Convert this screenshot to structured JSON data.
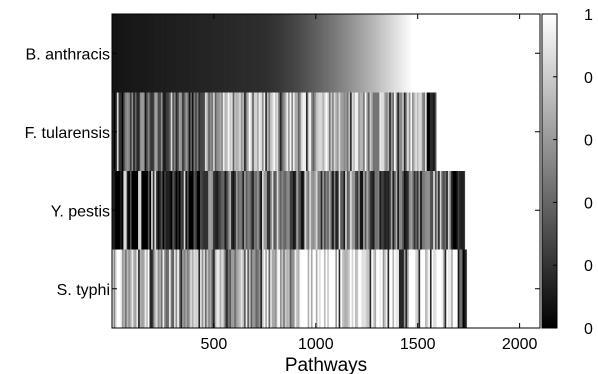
{
  "chart_data": {
    "type": "heatmap",
    "title": "",
    "xlabel": "Pathways",
    "ylabel": "",
    "xlim": [
      0,
      2100
    ],
    "xticks": [
      500,
      1000,
      1500,
      2000
    ],
    "rows": [
      {
        "label": "B. anthracis",
        "length": 1470,
        "pattern": "gradient"
      },
      {
        "label": "F. tularensis",
        "length": 1590,
        "pattern": "band",
        "bands": [
          [
            0,
            60,
            0.08
          ],
          [
            60,
            460,
            0.35
          ],
          [
            460,
            1540,
            0.72
          ],
          [
            1540,
            1590,
            0.18
          ]
        ]
      },
      {
        "label": "Y. pestis",
        "length": 1730,
        "pattern": "band",
        "bands": [
          [
            0,
            460,
            0.05
          ],
          [
            460,
            1520,
            0.4
          ],
          [
            1520,
            1670,
            0.62
          ],
          [
            1670,
            1730,
            0.15
          ]
        ]
      },
      {
        "label": "S. typhi",
        "length": 1740,
        "pattern": "band",
        "bands": [
          [
            0,
            40,
            0.85
          ],
          [
            40,
            900,
            0.7
          ],
          [
            900,
            1690,
            0.93
          ],
          [
            1690,
            1740,
            0.25
          ]
        ]
      }
    ],
    "colorbar": {
      "min": 0,
      "max": 1,
      "tick_labels": [
        "0",
        "0",
        "0",
        "0",
        "0",
        "1"
      ],
      "colormap": "gray"
    }
  }
}
